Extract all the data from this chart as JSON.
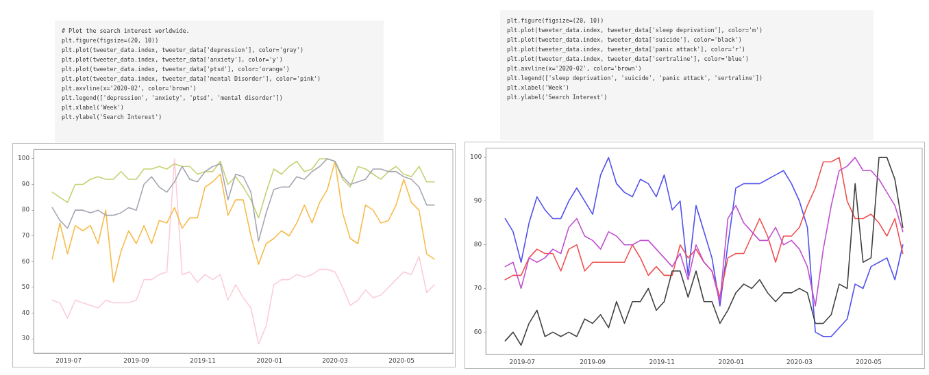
{
  "chart_data": [
    {
      "type": "line",
      "x": [
        "2019-06-16",
        "2019-06-23",
        "2019-06-30",
        "2019-07-07",
        "2019-07-14",
        "2019-07-21",
        "2019-07-28",
        "2019-08-04",
        "2019-08-11",
        "2019-08-18",
        "2019-08-25",
        "2019-09-01",
        "2019-09-08",
        "2019-09-15",
        "2019-09-22",
        "2019-09-29",
        "2019-10-06",
        "2019-10-13",
        "2019-10-20",
        "2019-10-27",
        "2019-11-03",
        "2019-11-10",
        "2019-11-17",
        "2019-11-24",
        "2019-12-01",
        "2019-12-08",
        "2019-12-15",
        "2019-12-22",
        "2019-12-29",
        "2020-01-05",
        "2020-01-12",
        "2020-01-19",
        "2020-01-26",
        "2020-02-02",
        "2020-02-09",
        "2020-02-16",
        "2020-02-23",
        "2020-03-01",
        "2020-03-08",
        "2020-03-15",
        "2020-03-22",
        "2020-03-29",
        "2020-04-05",
        "2020-04-12",
        "2020-04-19",
        "2020-04-26",
        "2020-05-03",
        "2020-05-10",
        "2020-05-17",
        "2020-05-24",
        "2020-05-31"
      ],
      "series": [
        {
          "color": "#a4a6b2",
          "values": [
            81,
            76,
            73,
            80,
            80,
            79,
            80,
            78,
            78,
            79,
            81,
            80,
            90,
            93,
            89,
            87,
            91,
            97,
            92,
            91,
            95,
            97,
            98,
            84,
            94,
            93,
            87,
            68,
            79,
            88,
            89,
            89,
            93,
            92,
            95,
            97,
            100,
            99,
            93,
            90,
            91,
            92,
            96,
            96,
            95,
            95,
            93,
            92,
            89,
            82,
            82
          ]
        },
        {
          "color": "#c6d072",
          "values": [
            87,
            85,
            83,
            90,
            90,
            92,
            93,
            92,
            92,
            95,
            92,
            92,
            96,
            96,
            97,
            96,
            98,
            97,
            97,
            94,
            95,
            95,
            99,
            90,
            93,
            89,
            84,
            77,
            87,
            96,
            94,
            97,
            99,
            95,
            96,
            100,
            100,
            99,
            92,
            89,
            97,
            96,
            94,
            92,
            95,
            97,
            94,
            93,
            97,
            91,
            91
          ]
        },
        {
          "color": "#f7bb4b",
          "values": [
            61,
            75,
            63,
            74,
            72,
            74,
            67,
            80,
            52,
            64,
            72,
            67,
            74,
            67,
            76,
            75,
            81,
            73,
            77,
            77,
            89,
            91,
            94,
            78,
            84,
            84,
            70,
            59,
            67,
            69,
            72,
            70,
            75,
            82,
            75,
            83,
            88,
            99,
            79,
            69,
            67,
            82,
            80,
            75,
            76,
            82,
            92,
            83,
            80,
            63,
            61
          ]
        },
        {
          "color": "#fbcdd8",
          "values": [
            45,
            44,
            38,
            45,
            44,
            43,
            42,
            45,
            44,
            44,
            44,
            45,
            53,
            53,
            55,
            56,
            100,
            55,
            56,
            52,
            55,
            53,
            55,
            45,
            51,
            46,
            42,
            28,
            35,
            51,
            53,
            53,
            55,
            54,
            55,
            57,
            57,
            56,
            50,
            43,
            45,
            49,
            46,
            47,
            50,
            53,
            56,
            55,
            62,
            48,
            51
          ]
        }
      ],
      "xlim": [
        "2019-05-30",
        "2020-06-17"
      ],
      "xticks": [
        "2019-07",
        "2019-09",
        "2019-11",
        "2020-01",
        "2020-03",
        "2020-05"
      ],
      "ylim": [
        24.4,
        103.6
      ],
      "yticks": [
        30,
        40,
        50,
        60,
        70,
        80,
        90,
        100
      ],
      "grid": false,
      "legend": false,
      "annotations": [
        "# Plot the search interest worldwide.",
        "plt.figure(figsize=(20, 10))",
        "plt.plot(tweeter_data.index, tweeter_data['depression'], color='gray')",
        "plt.plot(tweeter_data.index, tweeter_data['anxiety'], color='y')",
        "plt.plot(tweeter_data.index, tweeter_data['ptsd'], color='orange')",
        "plt.plot(tweeter_data.index, tweeter_data['mental Disorder'], color='pink')",
        "plt.axvline(x='2020-02', color='brown')",
        "plt.legend(['depression', 'anxiety', 'ptsd', 'mental disorder'])",
        "plt.xlabel('Week')",
        "plt.ylabel('Search Interest')"
      ]
    },
    {
      "type": "line",
      "x": [
        "2019-06-16",
        "2019-06-23",
        "2019-06-30",
        "2019-07-07",
        "2019-07-14",
        "2019-07-21",
        "2019-07-28",
        "2019-08-04",
        "2019-08-11",
        "2019-08-18",
        "2019-08-25",
        "2019-09-01",
        "2019-09-08",
        "2019-09-15",
        "2019-09-22",
        "2019-09-29",
        "2019-10-06",
        "2019-10-13",
        "2019-10-20",
        "2019-10-27",
        "2019-11-03",
        "2019-11-10",
        "2019-11-17",
        "2019-11-24",
        "2019-12-01",
        "2019-12-08",
        "2019-12-15",
        "2019-12-22",
        "2019-12-29",
        "2020-01-05",
        "2020-01-12",
        "2020-01-19",
        "2020-01-26",
        "2020-02-02",
        "2020-02-09",
        "2020-02-16",
        "2020-02-23",
        "2020-03-01",
        "2020-03-08",
        "2020-03-15",
        "2020-03-22",
        "2020-03-29",
        "2020-04-05",
        "2020-04-12",
        "2020-04-19",
        "2020-04-26",
        "2020-05-03",
        "2020-05-10",
        "2020-05-17",
        "2020-05-24",
        "2020-05-31"
      ],
      "series": [
        {
          "color": "#c050d0",
          "values": [
            75,
            76,
            70,
            77,
            76,
            77,
            79,
            78,
            84,
            86,
            82,
            81,
            79,
            83,
            82,
            80,
            80,
            81,
            81,
            79,
            77,
            75,
            78,
            72,
            80,
            76,
            74,
            67,
            86,
            89,
            85,
            83,
            81,
            81,
            84,
            80,
            81,
            79,
            75,
            66,
            79,
            89,
            97,
            98,
            100,
            97,
            97,
            95,
            92,
            89,
            83
          ]
        },
        {
          "color": "#404040",
          "values": [
            58,
            60,
            57,
            62,
            65,
            59,
            60,
            59,
            60,
            59,
            63,
            62,
            64,
            61,
            67,
            62,
            67,
            67,
            70,
            65,
            67,
            74,
            74,
            68,
            74,
            67,
            67,
            62,
            65,
            69,
            71,
            70,
            72,
            69,
            67,
            69,
            69,
            70,
            69,
            62,
            62,
            64,
            71,
            70,
            94,
            76,
            77,
            100,
            100,
            95,
            84
          ]
        },
        {
          "color": "#f05050",
          "values": [
            72,
            73,
            73,
            77,
            79,
            78,
            78,
            74,
            79,
            80,
            74,
            76,
            76,
            76,
            76,
            76,
            80,
            77,
            73,
            75,
            73,
            73,
            80,
            77,
            79,
            76,
            74,
            68,
            77,
            78,
            78,
            82,
            86,
            82,
            76,
            82,
            82,
            84,
            89,
            93,
            99,
            99,
            100,
            90,
            86,
            86,
            87,
            85,
            82,
            86,
            78
          ]
        },
        {
          "color": "#5050ee",
          "values": [
            86,
            83,
            76,
            85,
            91,
            88,
            86,
            86,
            90,
            93,
            90,
            87,
            96,
            100,
            94,
            92,
            91,
            95,
            94,
            91,
            96,
            88,
            90,
            73,
            89,
            83,
            77,
            66,
            80,
            93,
            94,
            94,
            94,
            95,
            96,
            97,
            94,
            90,
            84,
            60,
            59,
            59,
            61,
            63,
            71,
            70,
            75,
            76,
            77,
            72,
            80
          ]
        }
      ],
      "xlim": [
        "2019-05-30",
        "2020-06-17"
      ],
      "xticks": [
        "2019-07",
        "2019-09",
        "2019-11",
        "2020-01",
        "2020-03",
        "2020-05"
      ],
      "ylim": [
        54.85,
        102.15
      ],
      "yticks": [
        60,
        70,
        80,
        90,
        100
      ],
      "grid": false,
      "legend": false,
      "annotations": [
        "plt.figure(figsize=(20, 10))",
        "plt.plot(tweeter_data.index, tweeter_data['sleep deprivation'], color='m')",
        "plt.plot(tweeter_data.index, tweeter_data['suicide'], color='black')",
        "plt.plot(tweeter_data.index, tweeter_data['panic attack'], color='r')",
        "plt.plot(tweeter_data.index, tweeter_data['sertraline'], color='blue')",
        "plt.axvline(x='2020-02', color='brown')",
        "plt.legend(['sleep deprivation', 'suicide', 'panic attack', 'sertraline'])",
        "plt.xlabel('Week')",
        "plt.ylabel('Search Interest')"
      ]
    }
  ]
}
